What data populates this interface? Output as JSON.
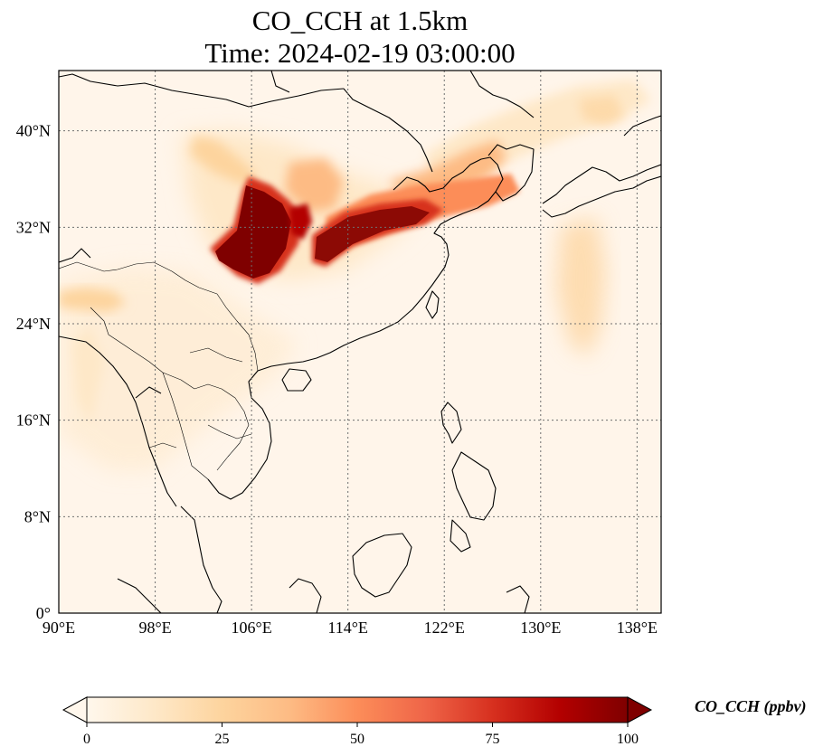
{
  "title": {
    "line1": "CO_CCH at 1.5km",
    "line2": "Time: 2024-02-19 03:00:00"
  },
  "map": {
    "variable": "CO_CCH",
    "level": "1.5km",
    "lon_range": [
      90,
      140
    ],
    "lat_range": [
      0,
      45
    ],
    "lon_ticks": [
      "90°E",
      "98°E",
      "106°E",
      "114°E",
      "122°E",
      "130°E",
      "138°E"
    ],
    "lon_tick_values": [
      90,
      98,
      106,
      114,
      122,
      130,
      138
    ],
    "lat_ticks": [
      "0°",
      "8°N",
      "16°N",
      "24°N",
      "32°N",
      "40°N"
    ],
    "lat_tick_values": [
      0,
      8,
      16,
      24,
      32,
      40
    ],
    "gridlines": true
  },
  "colorbar": {
    "label": "CO_CCH (ppbv)",
    "ticks": [
      "0",
      "25",
      "50",
      "75",
      "100"
    ],
    "tick_values": [
      0,
      25,
      50,
      75,
      100
    ],
    "range": [
      0,
      100
    ],
    "colormap": "OrRd",
    "extend": "both",
    "colors": [
      "#fff7ec",
      "#fee8c8",
      "#fdd49e",
      "#fdbb84",
      "#fc8d59",
      "#ef6548",
      "#d7301f",
      "#b30000",
      "#7f0000"
    ]
  }
}
